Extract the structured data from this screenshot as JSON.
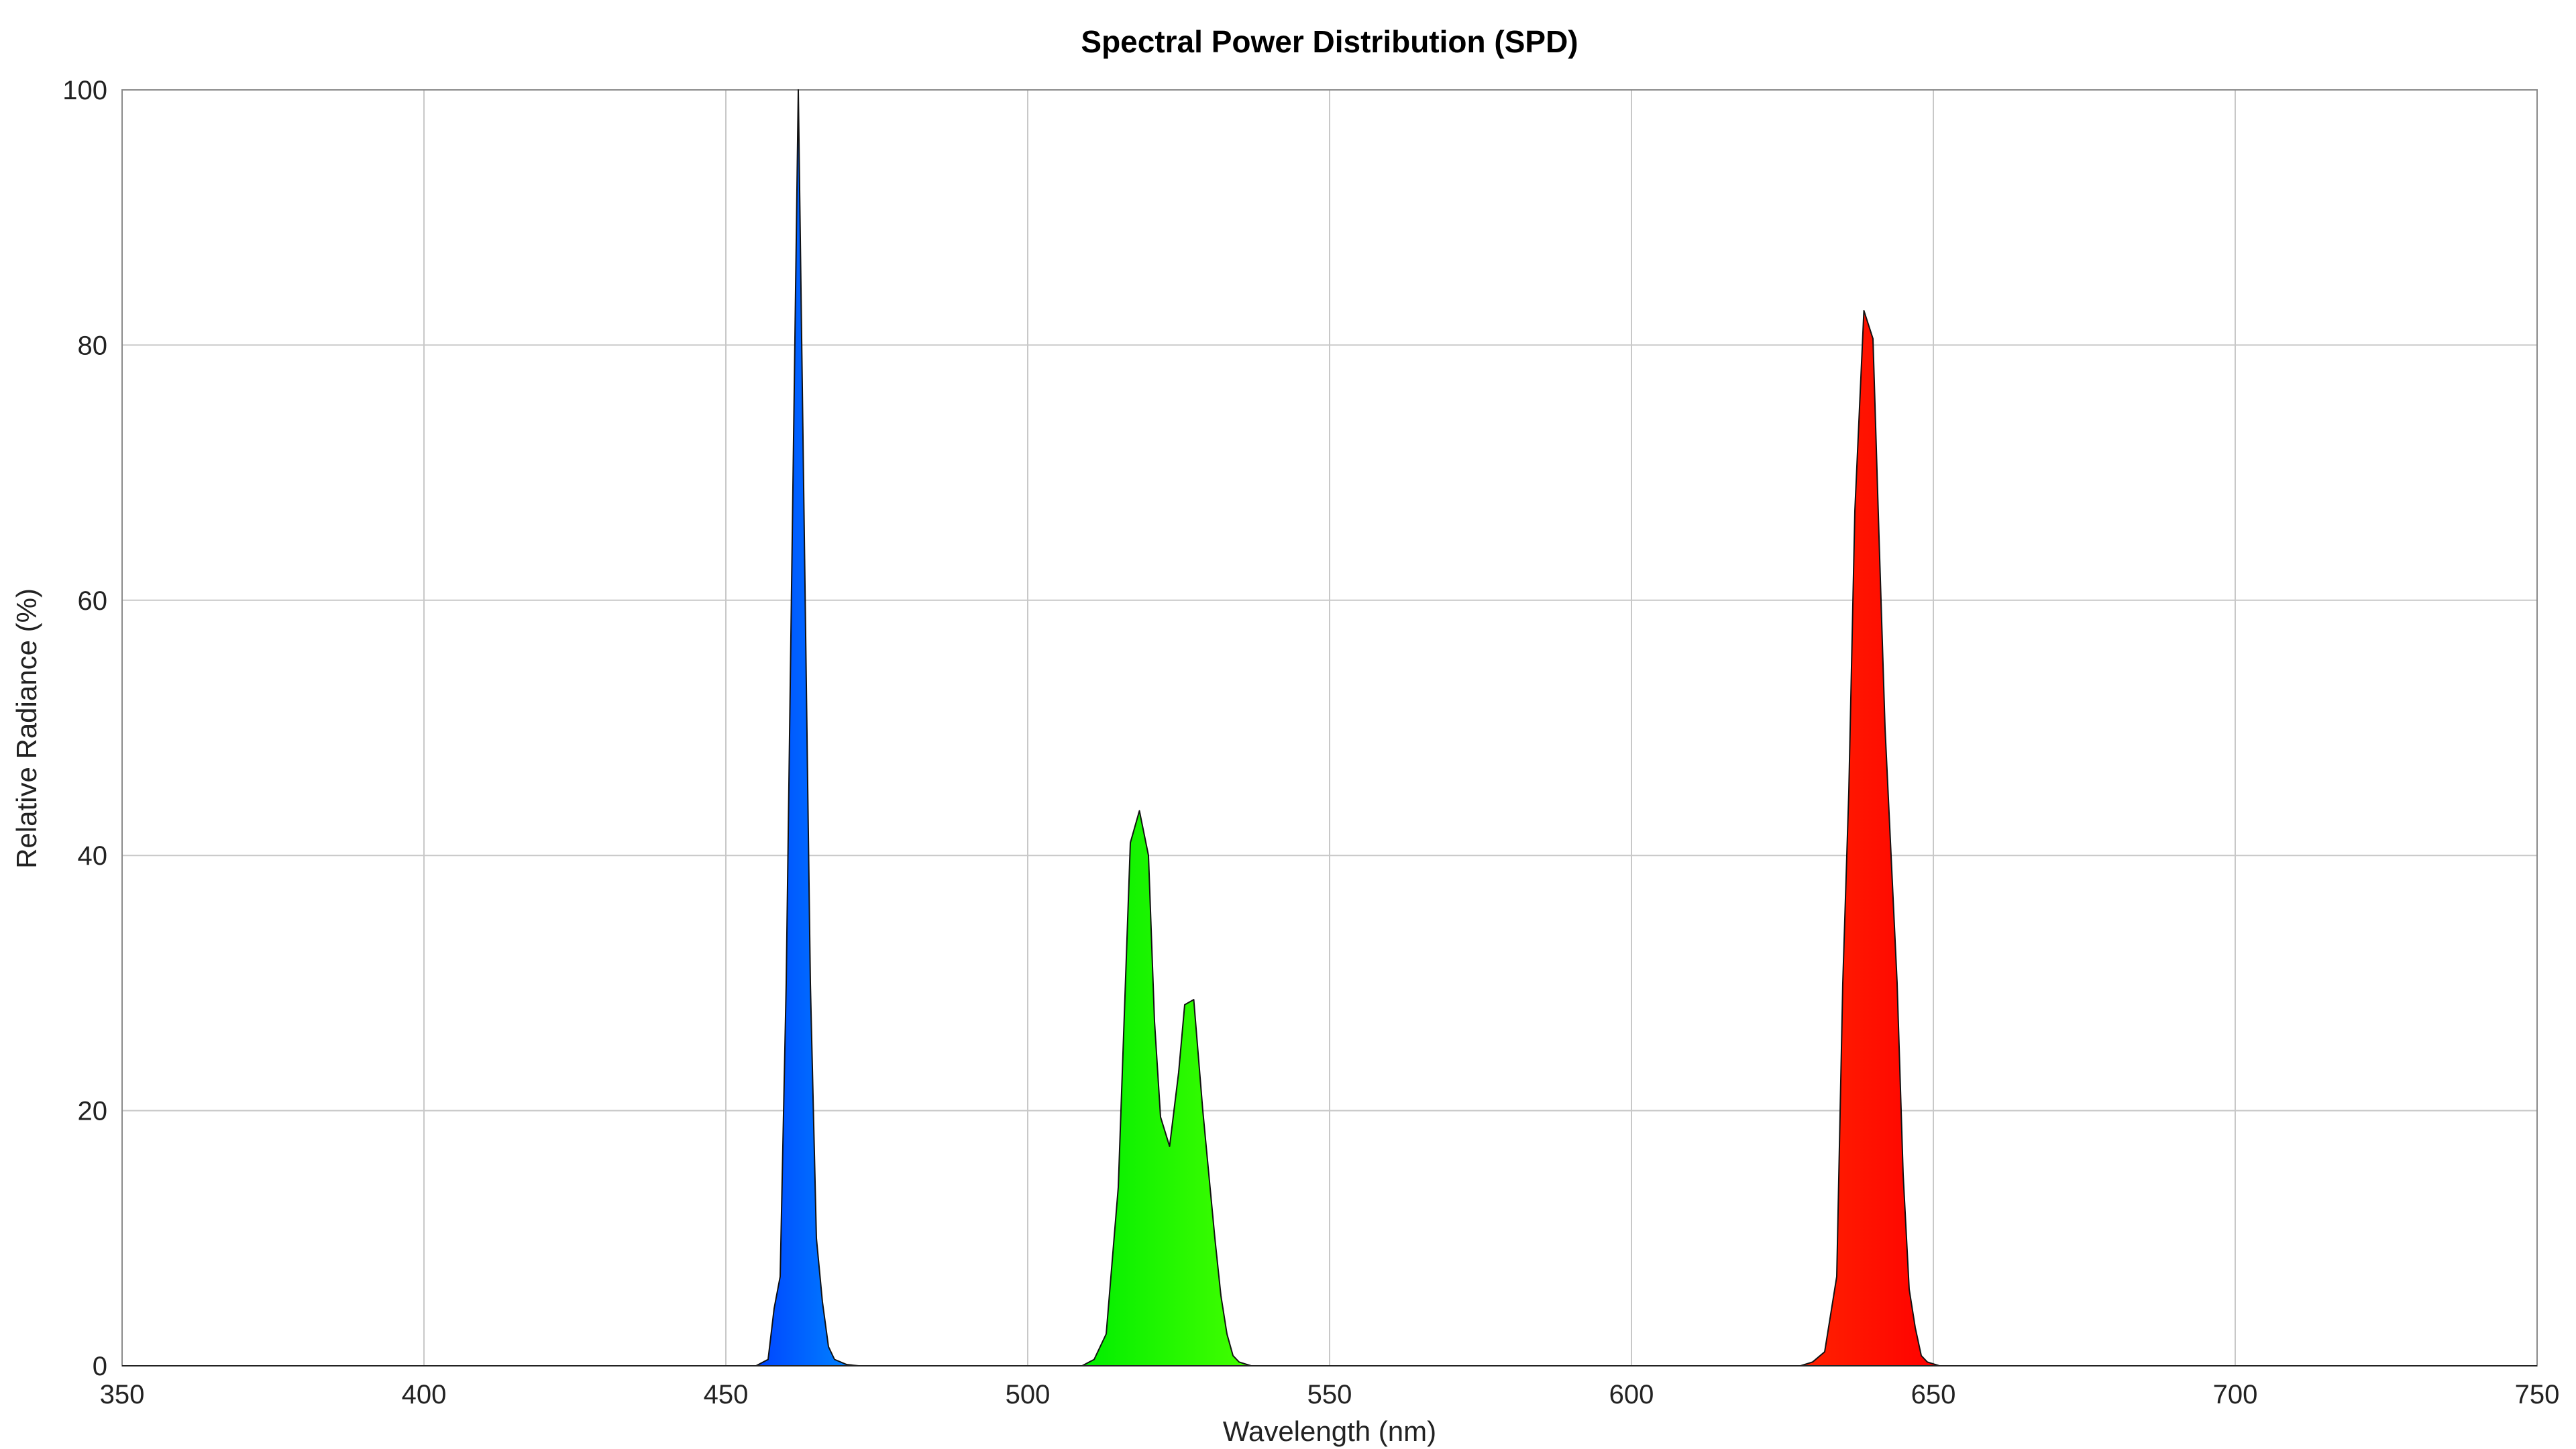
{
  "chart_data": {
    "type": "area",
    "title": "Spectral Power Distribution (SPD)",
    "xlabel": "Wavelength (nm)",
    "ylabel": "Relative Radiance (%)",
    "xlim": [
      350,
      750
    ],
    "ylim": [
      0,
      100
    ],
    "x_ticks": [
      "350",
      "400",
      "450",
      "500",
      "550",
      "600",
      "650",
      "700",
      "750"
    ],
    "y_ticks": [
      "0",
      "20",
      "40",
      "60",
      "80",
      "100"
    ],
    "grid": true,
    "legend": "none",
    "series": [
      {
        "color_start": "#0044ff",
        "color_end": "#0088ff",
        "points": [
          [
            455,
            0
          ],
          [
            457,
            0.5
          ],
          [
            458,
            4.5
          ],
          [
            459,
            7
          ],
          [
            460,
            30
          ],
          [
            461,
            65
          ],
          [
            462,
            100
          ],
          [
            463,
            65
          ],
          [
            464,
            30
          ],
          [
            465,
            10
          ],
          [
            466,
            5
          ],
          [
            467,
            1.5
          ],
          [
            468,
            0.5
          ],
          [
            470,
            0.1
          ],
          [
            472,
            0
          ]
        ]
      },
      {
        "color_start": "#00ee00",
        "color_end": "#44ff00",
        "points": [
          [
            509,
            0
          ],
          [
            511,
            0.5
          ],
          [
            513,
            2.5
          ],
          [
            515,
            14
          ],
          [
            517,
            41
          ],
          [
            518.5,
            43.5
          ],
          [
            520,
            40
          ],
          [
            521,
            27
          ],
          [
            522,
            19.5
          ],
          [
            523.5,
            17.2
          ],
          [
            525,
            23
          ],
          [
            526,
            28.3
          ],
          [
            527.5,
            28.7
          ],
          [
            529,
            20
          ],
          [
            531,
            10
          ],
          [
            532,
            5.5
          ],
          [
            533,
            2.5
          ],
          [
            534,
            0.8
          ],
          [
            535,
            0.3
          ],
          [
            537,
            0
          ]
        ]
      },
      {
        "color_start": "#ff2200",
        "color_end": "#ff0000",
        "points": [
          [
            628,
            0
          ],
          [
            630,
            0.3
          ],
          [
            632,
            1.1
          ],
          [
            634,
            7
          ],
          [
            635,
            30
          ],
          [
            636,
            45
          ],
          [
            637,
            67
          ],
          [
            638.5,
            82.7
          ],
          [
            640,
            80.5
          ],
          [
            641,
            65
          ],
          [
            642,
            50
          ],
          [
            644,
            30
          ],
          [
            645,
            15
          ],
          [
            646,
            6
          ],
          [
            647,
            3
          ],
          [
            648,
            0.8
          ],
          [
            649,
            0.3
          ],
          [
            651,
            0
          ]
        ]
      }
    ]
  }
}
